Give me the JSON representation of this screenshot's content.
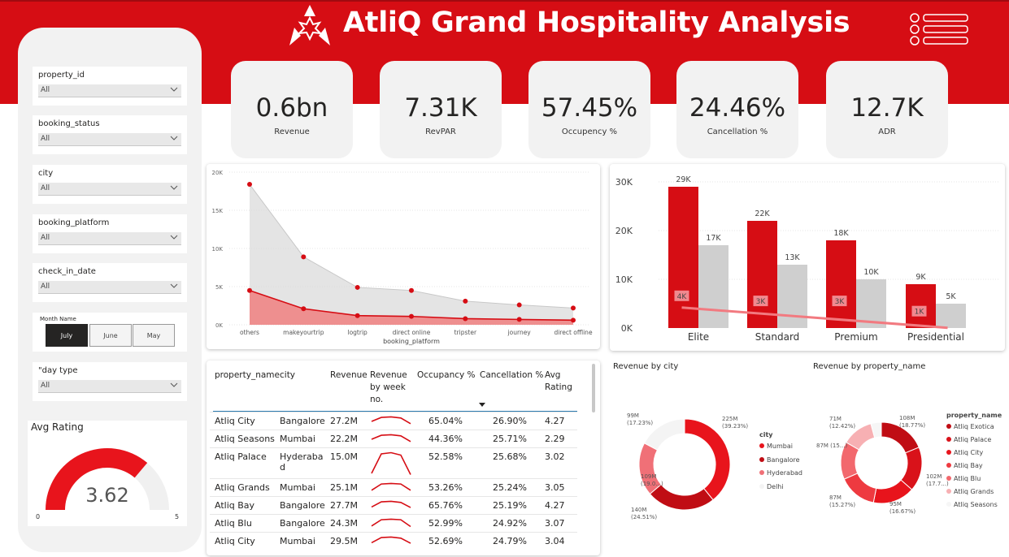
{
  "header": {
    "title": "AtliQ Grand Hospitality Analysis"
  },
  "filters": [
    {
      "label": "property_id",
      "value": "All"
    },
    {
      "label": "booking_status",
      "value": "All"
    },
    {
      "label": "city",
      "value": "All"
    },
    {
      "label": "booking_platform",
      "value": "All"
    },
    {
      "label": "check_in_date",
      "value": "All"
    }
  ],
  "month_filter": {
    "label": "Month Name",
    "options": [
      "July",
      "June",
      "May"
    ],
    "selected": "July"
  },
  "day_type_filter": {
    "label": "\"day type",
    "value": "All"
  },
  "avg_rating_gauge": {
    "title": "Avg Rating",
    "value": "3.62",
    "min": "0",
    "max": "5",
    "fraction": 0.724
  },
  "kpis": [
    {
      "value": "0.6bn",
      "label": "Revenue"
    },
    {
      "value": "7.31K",
      "label": "RevPAR"
    },
    {
      "value": "57.45%",
      "label": "Occupency %"
    },
    {
      "value": "24.46%",
      "label": "Cancellation %"
    },
    {
      "value": "12.7K",
      "label": "ADR"
    }
  ],
  "colors": {
    "accent": "#d60d14",
    "dark_red": "#b00d12",
    "gray": "#c8c8c8",
    "light_gray": "#f2f2f2"
  },
  "chart_data": [
    {
      "type": "area",
      "categories": [
        "others",
        "makeyourtrip",
        "logtrip",
        "direct online",
        "tripster",
        "journey",
        "direct offline"
      ],
      "series": [
        {
          "values": [
            18400,
            8900,
            4900,
            4500,
            3100,
            2600,
            2200
          ]
        },
        {
          "values": [
            4500,
            2100,
            1200,
            1100,
            800,
            700,
            600
          ]
        }
      ],
      "xlabel": "booking_platform",
      "yticks": [
        "0K",
        "5K",
        "10K",
        "15K",
        "20K"
      ],
      "ylim": [
        0,
        20000
      ]
    },
    {
      "type": "bar",
      "categories": [
        "Elite",
        "Standard",
        "Premium",
        "Presidential"
      ],
      "series": [
        {
          "values": [
            29000,
            22000,
            18000,
            9000
          ],
          "labels": [
            "29K",
            "22K",
            "18K",
            "9K"
          ]
        },
        {
          "values": [
            17000,
            13000,
            10000,
            5000
          ],
          "labels": [
            "17K",
            "13K",
            "10K",
            "5K"
          ]
        },
        {
          "values": [
            4000,
            3000,
            3000,
            1000
          ],
          "labels": [
            "4K",
            "3K",
            "3K",
            "1K"
          ]
        }
      ],
      "yticks": [
        "0K",
        "10K",
        "20K",
        "30K"
      ],
      "ylim": [
        0,
        30000
      ]
    },
    {
      "type": "pie",
      "title": "Revenue by city",
      "legend_title": "city",
      "labels": [
        "Mumbai",
        "Bangalore",
        "Hyderabad",
        "Delhi"
      ],
      "values": [
        39.23,
        24.51,
        19.0,
        17.23
      ],
      "data_labels": [
        "225M (39.23%)",
        "140M (24.51%)",
        "109M (19.0...)",
        "99M (17.23%)"
      ],
      "colors": [
        "#e8141c",
        "#c00d14",
        "#f07077",
        "#f4f4f4"
      ]
    },
    {
      "type": "pie",
      "title": "Revenue by property_name",
      "legend_title": "property_name",
      "labels": [
        "Atliq Exotica",
        "Atliq Palace",
        "Atliq City",
        "Atliq Bay",
        "Atliq Blu",
        "Atliq Grands",
        "Atliq Seasons"
      ],
      "values": [
        18.77,
        17.7,
        16.67,
        15.27,
        15.0,
        12.42,
        4.17
      ],
      "data_labels": [
        "108M (18.77%)",
        "102M (17.7...)",
        "95M (16.67%)",
        "87M (15.27%)",
        "87M (15...)",
        "71M (12.42%)",
        ""
      ],
      "colors": [
        "#c00d14",
        "#d9121a",
        "#e8141c",
        "#ee3a40",
        "#f2686d",
        "#f7b0b3",
        "#f6f6f6"
      ]
    }
  ],
  "table": {
    "headers": [
      "property_name",
      "city",
      "Revenue",
      "Revenue by week no.",
      "Occupancy %",
      "Cancellation %",
      "Avg Rating"
    ],
    "rows": [
      {
        "property_name": "Atliq City",
        "city": "Bangalore",
        "revenue": "27.2M",
        "occupancy": "65.04%",
        "cancellation": "26.90%",
        "rating": "4.27",
        "spark": [
          0.5,
          0.85,
          0.9,
          0.8,
          0.3
        ]
      },
      {
        "property_name": "Atliq Seasons",
        "city": "Mumbai",
        "revenue": "22.2M",
        "occupancy": "44.36%",
        "cancellation": "25.71%",
        "rating": "2.29",
        "spark": [
          0.5,
          0.85,
          0.9,
          0.8,
          0.3
        ]
      },
      {
        "property_name": "Atliq Palace",
        "city": "Hyderabad",
        "revenue": "15.0M",
        "occupancy": "52.58%",
        "cancellation": "25.68%",
        "rating": "3.02",
        "spark": [
          0.1,
          0.9,
          0.95,
          0.85,
          0.05
        ]
      },
      {
        "property_name": "Atliq Grands",
        "city": "Mumbai",
        "revenue": "25.1M",
        "occupancy": "53.26%",
        "cancellation": "25.24%",
        "rating": "3.05",
        "spark": [
          0.3,
          0.85,
          0.9,
          0.85,
          0.3
        ]
      },
      {
        "property_name": "Atliq Bay",
        "city": "Bangalore",
        "revenue": "27.7M",
        "occupancy": "65.76%",
        "cancellation": "25.19%",
        "rating": "4.27",
        "spark": [
          0.4,
          0.85,
          0.9,
          0.8,
          0.35
        ]
      },
      {
        "property_name": "Atliq Blu",
        "city": "Bangalore",
        "revenue": "24.3M",
        "occupancy": "52.99%",
        "cancellation": "24.92%",
        "rating": "3.07",
        "spark": [
          0.3,
          0.85,
          0.9,
          0.85,
          0.25
        ]
      },
      {
        "property_name": "Atliq City",
        "city": "Mumbai",
        "revenue": "29.5M",
        "occupancy": "52.69%",
        "cancellation": "24.79%",
        "rating": "3.04",
        "spark": [
          0.4,
          0.85,
          0.9,
          0.8,
          0.35
        ]
      }
    ]
  }
}
